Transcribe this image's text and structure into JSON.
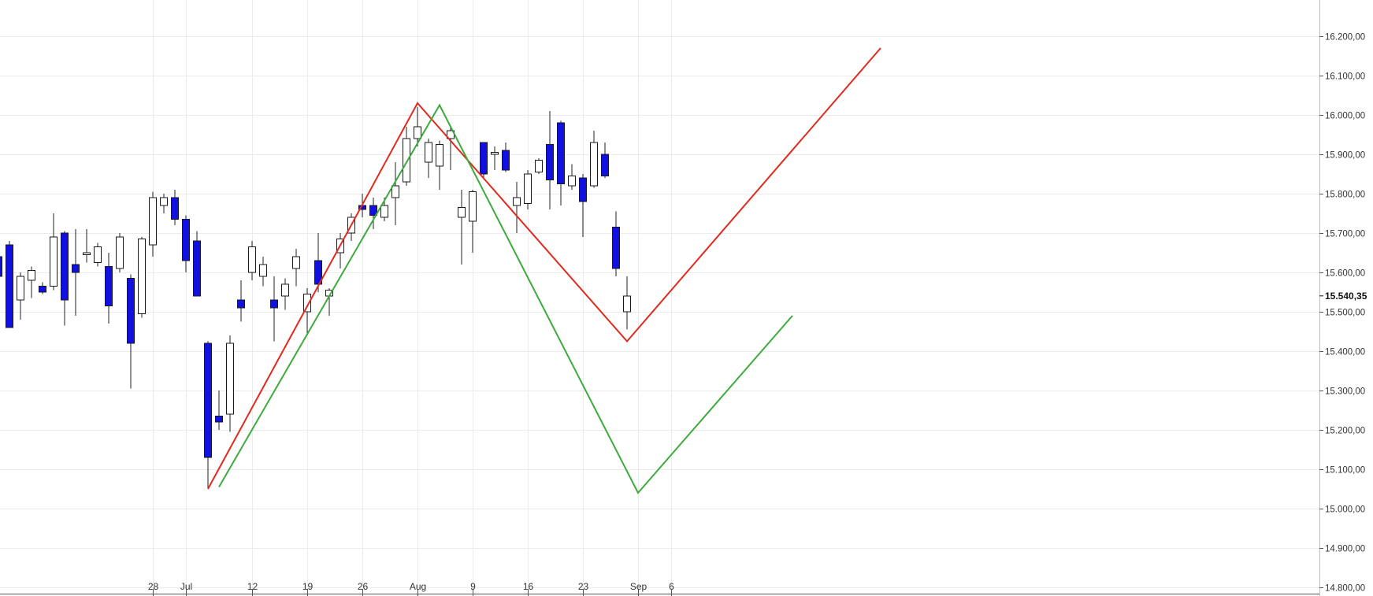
{
  "chart_data": {
    "type": "candlestick",
    "x_axis": {
      "tick_labels": [
        {
          "label": "28",
          "index": -5
        },
        {
          "label": "Jul",
          "index": -2
        },
        {
          "label": "12",
          "index": 4
        },
        {
          "label": "19",
          "index": 9
        },
        {
          "label": "26",
          "index": 14
        },
        {
          "label": "Aug",
          "index": 19
        },
        {
          "label": "9",
          "index": 24
        },
        {
          "label": "16",
          "index": 29
        },
        {
          "label": "23",
          "index": 34
        },
        {
          "label": "Sep",
          "index": 39
        },
        {
          "label": "6",
          "index": 42
        }
      ]
    },
    "y_axis": {
      "ylim": [
        14800,
        16250
      ],
      "ticks": [
        16200,
        16100,
        16000,
        15900,
        15800,
        15700,
        15600,
        15500,
        15400,
        15300,
        15200,
        15100,
        15000,
        14900,
        14800
      ],
      "tick_labels": [
        "16.200,00",
        "16.100,00",
        "16.000,00",
        "15.900,00",
        "15.800,00",
        "15.700,00",
        "15.600,00",
        "15.500,00",
        "15.400,00",
        "15.300,00",
        "15.200,00",
        "15.100,00",
        "15.000,00",
        "14.900,00",
        "14.800,00"
      ]
    },
    "last_price": {
      "value": 15540.35,
      "label": "15.540,35"
    },
    "grid": true,
    "candles": [
      {
        "i": -19,
        "o": 15640,
        "h": 15660,
        "l": 15590,
        "c": 15590
      },
      {
        "i": -18,
        "o": 15670,
        "h": 15680,
        "l": 15460,
        "c": 15460
      },
      {
        "i": -17,
        "o": 15530,
        "h": 15600,
        "l": 15480,
        "c": 15590
      },
      {
        "i": -16,
        "o": 15580,
        "h": 15615,
        "l": 15535,
        "c": 15605
      },
      {
        "i": -15,
        "o": 15565,
        "h": 15575,
        "l": 15545,
        "c": 15550
      },
      {
        "i": -14,
        "o": 15565,
        "h": 15750,
        "l": 15555,
        "c": 15690
      },
      {
        "i": -13,
        "o": 15700,
        "h": 15705,
        "l": 15465,
        "c": 15530
      },
      {
        "i": -12,
        "o": 15620,
        "h": 15710,
        "l": 15490,
        "c": 15600
      },
      {
        "i": -11,
        "o": 15645,
        "h": 15710,
        "l": 15625,
        "c": 15650
      },
      {
        "i": -10,
        "o": 15625,
        "h": 15675,
        "l": 15615,
        "c": 15665
      },
      {
        "i": -9,
        "o": 15615,
        "h": 15650,
        "l": 15470,
        "c": 15515
      },
      {
        "i": -8,
        "o": 15610,
        "h": 15700,
        "l": 15600,
        "c": 15690
      },
      {
        "i": -7,
        "o": 15585,
        "h": 15595,
        "l": 15305,
        "c": 15420
      },
      {
        "i": -6,
        "o": 15495,
        "h": 15690,
        "l": 15485,
        "c": 15685
      },
      {
        "i": -5,
        "o": 15670,
        "h": 15805,
        "l": 15640,
        "c": 15790
      },
      {
        "i": -4,
        "o": 15770,
        "h": 15800,
        "l": 15750,
        "c": 15790
      },
      {
        "i": -3,
        "o": 15790,
        "h": 15810,
        "l": 15720,
        "c": 15735
      },
      {
        "i": -2,
        "o": 15735,
        "h": 15745,
        "l": 15600,
        "c": 15630
      },
      {
        "i": -1,
        "o": 15680,
        "h": 15705,
        "l": 15540,
        "c": 15540
      },
      {
        "i": 0,
        "o": 15420,
        "h": 15425,
        "l": 15050,
        "c": 15130
      },
      {
        "i": 1,
        "o": 15235,
        "h": 15300,
        "l": 15200,
        "c": 15220
      },
      {
        "i": 2,
        "o": 15240,
        "h": 15440,
        "l": 15195,
        "c": 15420
      },
      {
        "i": 3,
        "o": 15530,
        "h": 15580,
        "l": 15475,
        "c": 15510
      },
      {
        "i": 4,
        "o": 15600,
        "h": 15680,
        "l": 15580,
        "c": 15665
      },
      {
        "i": 5,
        "o": 15590,
        "h": 15640,
        "l": 15565,
        "c": 15620
      },
      {
        "i": 6,
        "o": 15530,
        "h": 15590,
        "l": 15425,
        "c": 15510
      },
      {
        "i": 7,
        "o": 15540,
        "h": 15585,
        "l": 15505,
        "c": 15570
      },
      {
        "i": 8,
        "o": 15610,
        "h": 15660,
        "l": 15565,
        "c": 15640
      },
      {
        "i": 9,
        "o": 15500,
        "h": 15560,
        "l": 15440,
        "c": 15545
      },
      {
        "i": 10,
        "o": 15630,
        "h": 15700,
        "l": 15550,
        "c": 15570
      },
      {
        "i": 11,
        "o": 15540,
        "h": 15560,
        "l": 15490,
        "c": 15555
      },
      {
        "i": 12,
        "o": 15650,
        "h": 15700,
        "l": 15610,
        "c": 15685
      },
      {
        "i": 13,
        "o": 15700,
        "h": 15750,
        "l": 15680,
        "c": 15740
      },
      {
        "i": 14,
        "o": 15770,
        "h": 15800,
        "l": 15740,
        "c": 15760
      },
      {
        "i": 15,
        "o": 15770,
        "h": 15790,
        "l": 15710,
        "c": 15745
      },
      {
        "i": 16,
        "o": 15740,
        "h": 15790,
        "l": 15730,
        "c": 15770
      },
      {
        "i": 17,
        "o": 15790,
        "h": 15880,
        "l": 15720,
        "c": 15820
      },
      {
        "i": 18,
        "o": 15830,
        "h": 15970,
        "l": 15820,
        "c": 15940
      },
      {
        "i": 19,
        "o": 15940,
        "h": 16020,
        "l": 15920,
        "c": 15970
      },
      {
        "i": 20,
        "o": 15880,
        "h": 15940,
        "l": 15840,
        "c": 15930
      },
      {
        "i": 21,
        "o": 15870,
        "h": 15935,
        "l": 15810,
        "c": 15925
      },
      {
        "i": 22,
        "o": 15940,
        "h": 15970,
        "l": 15860,
        "c": 15960
      },
      {
        "i": 23,
        "o": 15740,
        "h": 15810,
        "l": 15620,
        "c": 15765
      },
      {
        "i": 24,
        "o": 15730,
        "h": 15810,
        "l": 15650,
        "c": 15805
      },
      {
        "i": 25,
        "o": 15930,
        "h": 15930,
        "l": 15840,
        "c": 15850
      },
      {
        "i": 26,
        "o": 15900,
        "h": 15920,
        "l": 15860,
        "c": 15905
      },
      {
        "i": 27,
        "o": 15910,
        "h": 15930,
        "l": 15855,
        "c": 15860
      },
      {
        "i": 28,
        "o": 15770,
        "h": 15830,
        "l": 15700,
        "c": 15790
      },
      {
        "i": 29,
        "o": 15775,
        "h": 15860,
        "l": 15760,
        "c": 15850
      },
      {
        "i": 30,
        "o": 15855,
        "h": 15890,
        "l": 15850,
        "c": 15885
      },
      {
        "i": 31,
        "o": 15925,
        "h": 16010,
        "l": 15760,
        "c": 15835
      },
      {
        "i": 32,
        "o": 15980,
        "h": 15985,
        "l": 15770,
        "c": 15825
      },
      {
        "i": 33,
        "o": 15820,
        "h": 15875,
        "l": 15810,
        "c": 15845
      },
      {
        "i": 34,
        "o": 15840,
        "h": 15850,
        "l": 15690,
        "c": 15780
      },
      {
        "i": 35,
        "o": 15820,
        "h": 15960,
        "l": 15815,
        "c": 15930
      },
      {
        "i": 36,
        "o": 15900,
        "h": 15930,
        "l": 15840,
        "c": 15845
      },
      {
        "i": 37,
        "o": 15715,
        "h": 15755,
        "l": 15590,
        "c": 15610
      },
      {
        "i": 38,
        "o": 15500,
        "h": 15590,
        "l": 15455,
        "c": 15540
      }
    ],
    "overlays": [
      {
        "color": "#e02a1d",
        "points": [
          [
            0,
            15050
          ],
          [
            19,
            16030
          ],
          [
            38,
            15425
          ],
          [
            61,
            16170
          ]
        ]
      },
      {
        "color": "#3daa3d",
        "points": [
          [
            1,
            15055
          ],
          [
            21,
            16025
          ],
          [
            39,
            15040
          ],
          [
            53,
            15490
          ]
        ]
      }
    ],
    "colors": {
      "bearish": "#1010e0",
      "bullish": "#ffffff",
      "wick": "#222222",
      "grid": "#ebebeb"
    }
  }
}
